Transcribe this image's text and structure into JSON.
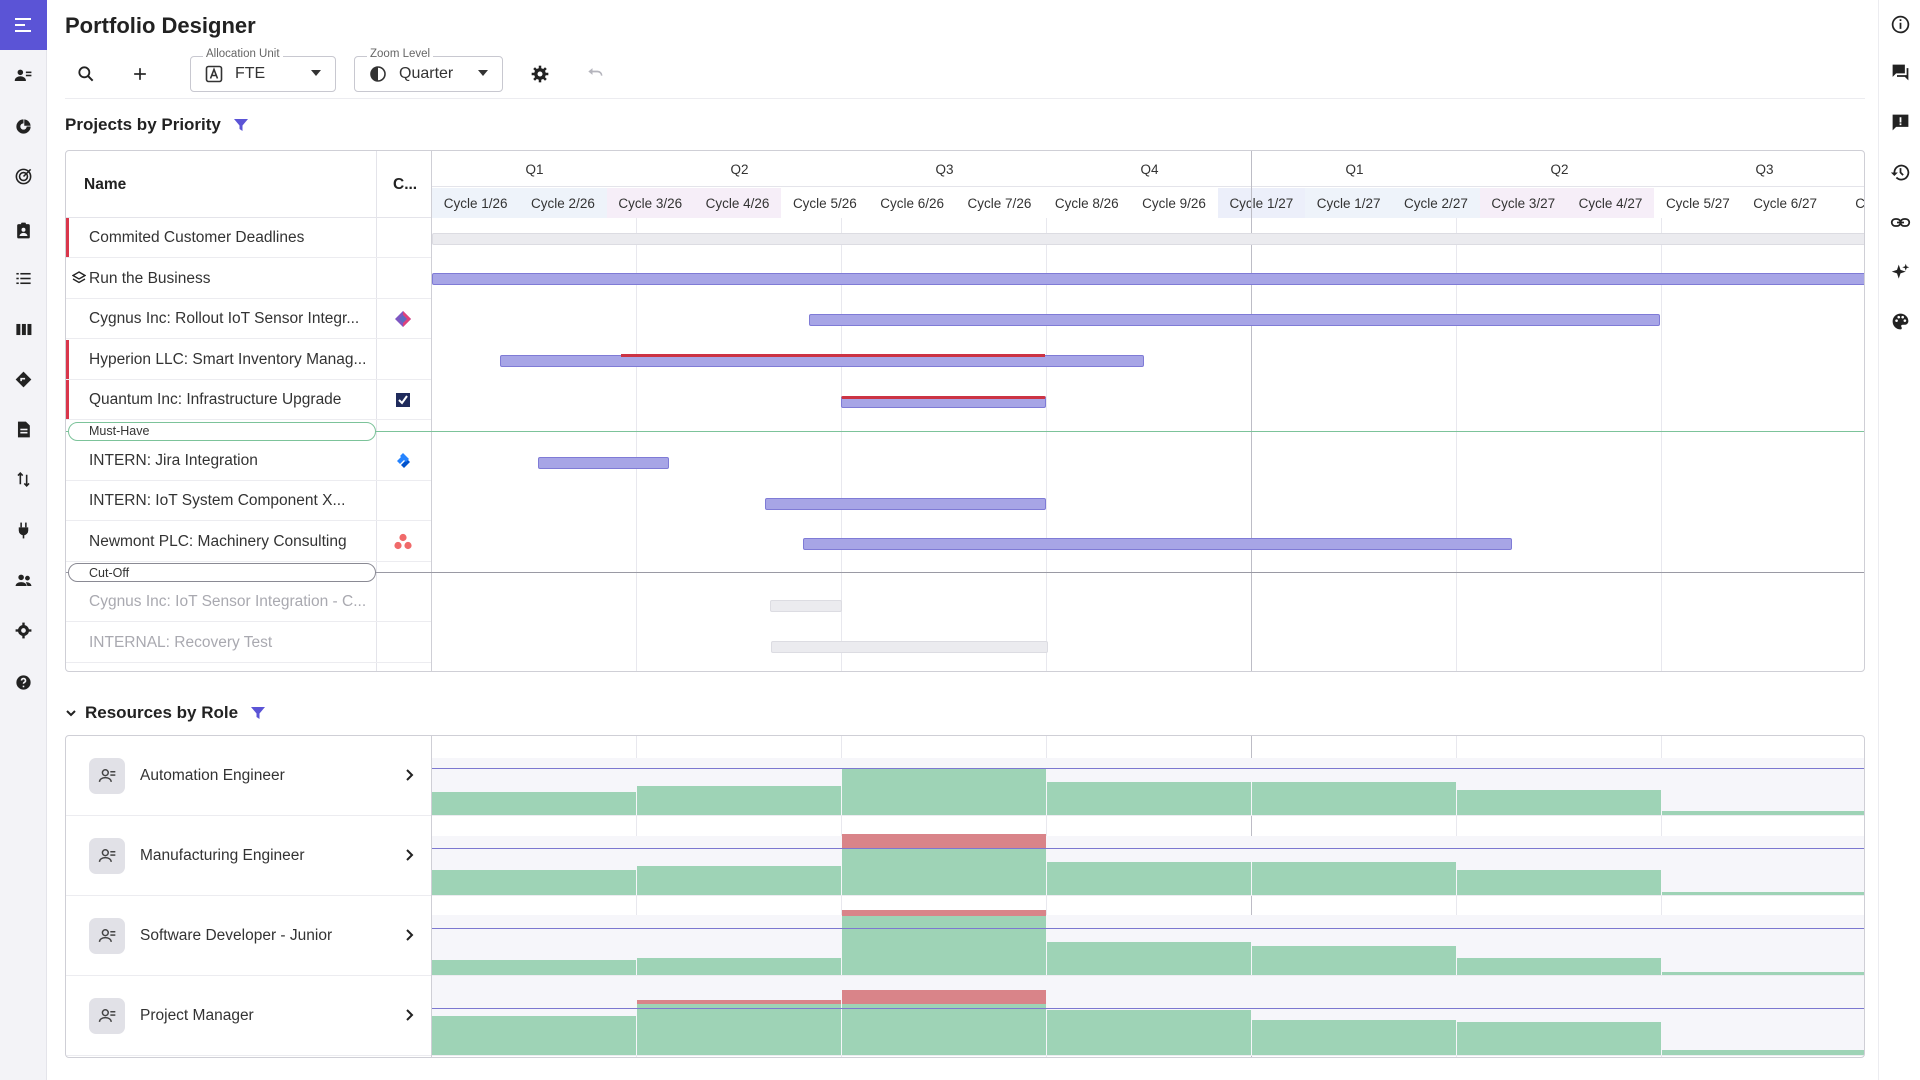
{
  "app": {
    "title": "Portfolio Designer"
  },
  "toolbar": {
    "allocation_unit": {
      "label": "Allocation Unit",
      "value": "FTE"
    },
    "zoom_level": {
      "label": "Zoom Level",
      "value": "Quarter"
    }
  },
  "projects": {
    "title": "Projects by Priority",
    "columns": {
      "name": "Name",
      "c": "C..."
    },
    "quarters": [
      "Q1",
      "Q2",
      "Q3",
      "Q4",
      "Q1",
      "Q2",
      "Q3"
    ],
    "cycles": [
      "Cycle 1/26",
      "Cycle 2/26",
      "Cycle 3/26",
      "Cycle 4/26",
      "Cycle 5/26",
      "Cycle 6/26",
      "Cycle 7/26",
      "Cycle 8/26",
      "Cycle 9/26",
      "Cycle 1/27",
      "Cycle 1/27",
      "Cycle 2/27",
      "Cycle 3/27",
      "Cycle 4/27",
      "Cycle 5/27",
      "Cycle 6/27",
      "Cyc..."
    ],
    "rows_top": [
      {
        "name": "Commited Customer Deadlines",
        "marked": true
      },
      {
        "name": "Run the Business",
        "marked": false,
        "stack": true
      }
    ],
    "rows_must": [
      {
        "name": "Cygnus Inc: Rollout IoT Sensor Integr...",
        "marked": false,
        "icon": "diamond-app-icon"
      },
      {
        "name": "Hyperion LLC: Smart Inventory Manag...",
        "marked": true
      },
      {
        "name": "Quantum Inc: Infrastructure Upgrade",
        "marked": true,
        "icon": "check-square-icon"
      }
    ],
    "band_must": "Must-Have",
    "rows_mid": [
      {
        "name": "INTERN: Jira Integration",
        "icon": "jira-icon"
      },
      {
        "name": "INTERN: IoT System Component X..."
      },
      {
        "name": "Newmont PLC: Machinery Consulting",
        "icon": "asana-icon"
      }
    ],
    "band_cut": "Cut-Off",
    "rows_cut": [
      {
        "name": "Cygnus Inc: IoT Sensor Integration - C..."
      },
      {
        "name": "INTERNAL: Recovery Test"
      }
    ]
  },
  "resources": {
    "title": "Resources by Role",
    "rows": [
      {
        "name": "Automation Engineer"
      },
      {
        "name": "Manufacturing Engineer"
      },
      {
        "name": "Software Developer - Junior"
      },
      {
        "name": "Project Manager"
      }
    ]
  }
}
